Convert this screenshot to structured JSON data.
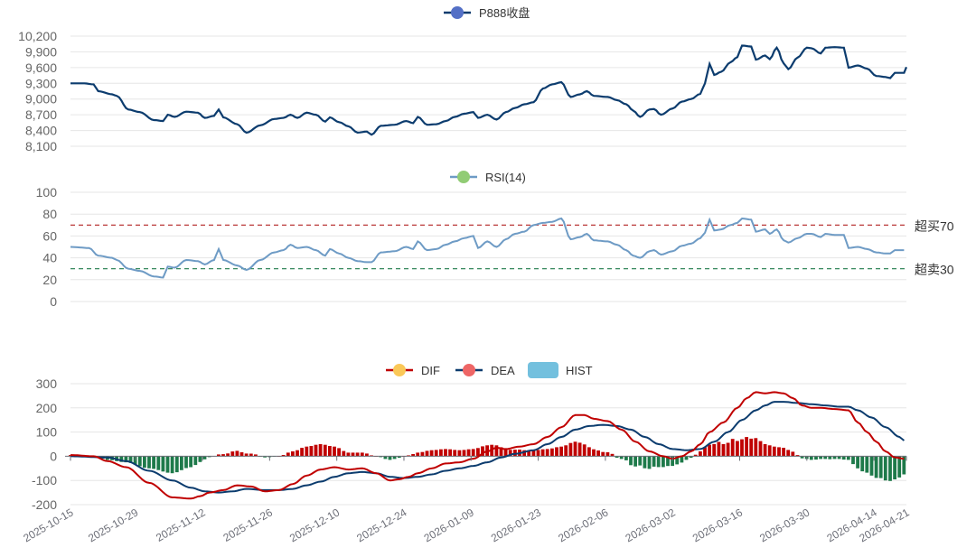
{
  "chart_data": [
    {
      "type": "line",
      "legend": [
        "P888收盘"
      ],
      "series": [
        {
          "name": "P888收盘",
          "color": "#0c3c6e",
          "legend_icon_color": "#5470c6"
        }
      ],
      "y_ticks": [
        8100,
        8400,
        8700,
        9000,
        9300,
        9600,
        9900,
        10200
      ],
      "y_tick_labels": [
        "8,100",
        "8,400",
        "8,700",
        "9,000",
        "9,300",
        "9,600",
        "9,900",
        "10,200"
      ],
      "ylim": [
        8100,
        10200
      ],
      "keypoints": [
        [
          0,
          9300
        ],
        [
          6,
          9300
        ],
        [
          10,
          9280
        ],
        [
          12,
          9150
        ],
        [
          18,
          9090
        ],
        [
          20,
          9060
        ],
        [
          25,
          8800
        ],
        [
          30,
          8750
        ],
        [
          36,
          8600
        ],
        [
          40,
          8580
        ],
        [
          42,
          8700
        ],
        [
          45,
          8660
        ],
        [
          50,
          8760
        ],
        [
          55,
          8740
        ],
        [
          58,
          8640
        ],
        [
          62,
          8680
        ],
        [
          64,
          8800
        ],
        [
          66,
          8650
        ],
        [
          72,
          8520
        ],
        [
          76,
          8360
        ],
        [
          82,
          8500
        ],
        [
          88,
          8620
        ],
        [
          92,
          8640
        ],
        [
          95,
          8700
        ],
        [
          98,
          8640
        ],
        [
          102,
          8740
        ],
        [
          106,
          8700
        ],
        [
          110,
          8570
        ],
        [
          112,
          8650
        ],
        [
          116,
          8560
        ],
        [
          120,
          8480
        ],
        [
          124,
          8360
        ],
        [
          128,
          8380
        ],
        [
          130,
          8320
        ],
        [
          134,
          8490
        ],
        [
          140,
          8510
        ],
        [
          145,
          8580
        ],
        [
          148,
          8540
        ],
        [
          150,
          8660
        ],
        [
          154,
          8510
        ],
        [
          158,
          8520
        ],
        [
          162,
          8580
        ],
        [
          166,
          8660
        ],
        [
          170,
          8720
        ],
        [
          174,
          8750
        ],
        [
          176,
          8640
        ],
        [
          180,
          8700
        ],
        [
          184,
          8610
        ],
        [
          188,
          8750
        ],
        [
          192,
          8830
        ],
        [
          196,
          8900
        ],
        [
          200,
          8940
        ],
        [
          204,
          9200
        ],
        [
          208,
          9280
        ],
        [
          212,
          9320
        ],
        [
          216,
          9040
        ],
        [
          220,
          9090
        ],
        [
          223,
          9150
        ],
        [
          226,
          9060
        ],
        [
          232,
          9040
        ],
        [
          236,
          8980
        ],
        [
          240,
          8900
        ],
        [
          243,
          8780
        ],
        [
          246,
          8660
        ],
        [
          250,
          8800
        ],
        [
          252,
          8810
        ],
        [
          255,
          8700
        ],
        [
          260,
          8820
        ],
        [
          264,
          8950
        ],
        [
          268,
          9000
        ],
        [
          272,
          9100
        ],
        [
          274,
          9300
        ],
        [
          276,
          9670
        ],
        [
          278,
          9460
        ],
        [
          281,
          9520
        ],
        [
          285,
          9700
        ],
        [
          288,
          9800
        ],
        [
          290,
          10020
        ],
        [
          294,
          10000
        ],
        [
          296,
          9750
        ],
        [
          300,
          9830
        ],
        [
          302,
          9760
        ],
        [
          305,
          9980
        ],
        [
          308,
          9680
        ],
        [
          310,
          9570
        ],
        [
          314,
          9790
        ],
        [
          318,
          9980
        ],
        [
          320,
          9970
        ],
        [
          324,
          9870
        ],
        [
          326,
          9980
        ],
        [
          330,
          9990
        ],
        [
          334,
          9980
        ],
        [
          336,
          9600
        ],
        [
          340,
          9640
        ],
        [
          344,
          9580
        ],
        [
          348,
          9440
        ],
        [
          352,
          9420
        ],
        [
          354,
          9400
        ],
        [
          356,
          9500
        ],
        [
          360,
          9500
        ],
        [
          362,
          9720
        ]
      ]
    },
    {
      "type": "line",
      "legend": [
        "RSI(14)"
      ],
      "series": [
        {
          "name": "RSI(14)",
          "color": "#6e9bc5",
          "legend_icon_color": "#91cc75"
        }
      ],
      "y_ticks": [
        0,
        20,
        40,
        60,
        80,
        100
      ],
      "y_tick_labels": [
        "0",
        "20",
        "40",
        "60",
        "80",
        "100"
      ],
      "ylim": [
        0,
        100
      ],
      "overbought": {
        "value": 70,
        "label": "超买70",
        "color": "#b22222"
      },
      "oversold": {
        "value": 30,
        "label": "超卖30",
        "color": "#1e7a4a"
      },
      "keypoints": [
        [
          0,
          50
        ],
        [
          8,
          49
        ],
        [
          12,
          42
        ],
        [
          18,
          40
        ],
        [
          20,
          38
        ],
        [
          25,
          30
        ],
        [
          30,
          28
        ],
        [
          36,
          23
        ],
        [
          40,
          22
        ],
        [
          42,
          32
        ],
        [
          45,
          31
        ],
        [
          50,
          38
        ],
        [
          55,
          37
        ],
        [
          58,
          34
        ],
        [
          62,
          38
        ],
        [
          64,
          48
        ],
        [
          66,
          38
        ],
        [
          72,
          33
        ],
        [
          76,
          29
        ],
        [
          82,
          38
        ],
        [
          88,
          45
        ],
        [
          92,
          47
        ],
        [
          95,
          52
        ],
        [
          98,
          49
        ],
        [
          102,
          50
        ],
        [
          106,
          47
        ],
        [
          110,
          42
        ],
        [
          112,
          48
        ],
        [
          116,
          44
        ],
        [
          120,
          40
        ],
        [
          124,
          37
        ],
        [
          128,
          36
        ],
        [
          130,
          36
        ],
        [
          134,
          45
        ],
        [
          140,
          46
        ],
        [
          145,
          50
        ],
        [
          148,
          48
        ],
        [
          150,
          55
        ],
        [
          154,
          47
        ],
        [
          158,
          48
        ],
        [
          162,
          52
        ],
        [
          166,
          55
        ],
        [
          170,
          58
        ],
        [
          174,
          60
        ],
        [
          176,
          49
        ],
        [
          180,
          55
        ],
        [
          184,
          50
        ],
        [
          188,
          57
        ],
        [
          192,
          62
        ],
        [
          196,
          64
        ],
        [
          200,
          70
        ],
        [
          204,
          72
        ],
        [
          208,
          73
        ],
        [
          212,
          76
        ],
        [
          216,
          57
        ],
        [
          220,
          59
        ],
        [
          223,
          62
        ],
        [
          226,
          56
        ],
        [
          232,
          55
        ],
        [
          236,
          52
        ],
        [
          240,
          47
        ],
        [
          243,
          42
        ],
        [
          246,
          40
        ],
        [
          250,
          46
        ],
        [
          252,
          47
        ],
        [
          255,
          43
        ],
        [
          260,
          46
        ],
        [
          264,
          51
        ],
        [
          268,
          53
        ],
        [
          272,
          58
        ],
        [
          274,
          63
        ],
        [
          276,
          75
        ],
        [
          278,
          65
        ],
        [
          281,
          66
        ],
        [
          285,
          70
        ],
        [
          288,
          72
        ],
        [
          290,
          76
        ],
        [
          294,
          75
        ],
        [
          296,
          64
        ],
        [
          300,
          66
        ],
        [
          302,
          62
        ],
        [
          305,
          66
        ],
        [
          308,
          56
        ],
        [
          310,
          54
        ],
        [
          314,
          58
        ],
        [
          318,
          62
        ],
        [
          320,
          62
        ],
        [
          324,
          59
        ],
        [
          326,
          62
        ],
        [
          330,
          61
        ],
        [
          334,
          61
        ],
        [
          336,
          49
        ],
        [
          340,
          50
        ],
        [
          344,
          48
        ],
        [
          348,
          45
        ],
        [
          352,
          44
        ],
        [
          354,
          44
        ],
        [
          356,
          47
        ],
        [
          360,
          47
        ]
      ]
    },
    {
      "type": "line+bar",
      "legend": [
        "DIF",
        "DEA",
        "HIST"
      ],
      "series": [
        {
          "name": "DIF",
          "color": "#c00000",
          "legend_icon_color": "#fac858"
        },
        {
          "name": "DEA",
          "color": "#0c3c6e",
          "legend_icon_color": "#ee6666"
        },
        {
          "name": "HIST",
          "color": "#73c0de",
          "legend_icon_color": "#73c0de",
          "pos_color": "#c00000",
          "neg_color": "#1e7a4a"
        }
      ],
      "y_ticks": [
        -200,
        -100,
        0,
        100,
        200,
        300
      ],
      "y_tick_labels": [
        "-200",
        "-100",
        "0",
        "100",
        "200",
        "300"
      ],
      "ylim": [
        -200,
        300
      ],
      "x_tick_labels": [
        "2025-10-15",
        "2025-10-29",
        "2025-11-12",
        "2025-11-26",
        "2025-12-10",
        "2025-12-24",
        "2026-01-09",
        "2026-01-23",
        "2026-02-06",
        "2026-03-02",
        "2026-03-16",
        "2026-03-30",
        "2026-04-14",
        "2026-04-21"
      ],
      "x_tick_index": [
        0,
        28,
        57,
        86,
        115,
        144,
        173,
        202,
        231,
        260,
        289,
        318,
        347,
        361
      ],
      "dif_keypoints": [
        [
          0,
          5
        ],
        [
          10,
          0
        ],
        [
          16,
          -20
        ],
        [
          24,
          -45
        ],
        [
          34,
          -110
        ],
        [
          44,
          -170
        ],
        [
          52,
          -175
        ],
        [
          56,
          -165
        ],
        [
          60,
          -150
        ],
        [
          66,
          -140
        ],
        [
          72,
          -120
        ],
        [
          78,
          -125
        ],
        [
          84,
          -145
        ],
        [
          90,
          -140
        ],
        [
          96,
          -115
        ],
        [
          102,
          -80
        ],
        [
          108,
          -55
        ],
        [
          114,
          -45
        ],
        [
          120,
          -55
        ],
        [
          126,
          -50
        ],
        [
          132,
          -70
        ],
        [
          138,
          -100
        ],
        [
          142,
          -95
        ],
        [
          146,
          -85
        ],
        [
          150,
          -70
        ],
        [
          156,
          -50
        ],
        [
          162,
          -30
        ],
        [
          168,
          -25
        ],
        [
          174,
          -10
        ],
        [
          180,
          20
        ],
        [
          184,
          35
        ],
        [
          188,
          30
        ],
        [
          194,
          40
        ],
        [
          200,
          50
        ],
        [
          206,
          80
        ],
        [
          212,
          120
        ],
        [
          218,
          170
        ],
        [
          222,
          170
        ],
        [
          226,
          155
        ],
        [
          232,
          145
        ],
        [
          238,
          110
        ],
        [
          244,
          60
        ],
        [
          250,
          20
        ],
        [
          256,
          0
        ],
        [
          260,
          -10
        ],
        [
          264,
          0
        ],
        [
          268,
          20
        ],
        [
          272,
          50
        ],
        [
          276,
          100
        ],
        [
          282,
          140
        ],
        [
          288,
          200
        ],
        [
          292,
          240
        ],
        [
          296,
          265
        ],
        [
          300,
          260
        ],
        [
          304,
          265
        ],
        [
          308,
          260
        ],
        [
          312,
          240
        ],
        [
          316,
          210
        ],
        [
          320,
          200
        ],
        [
          324,
          200
        ],
        [
          330,
          195
        ],
        [
          336,
          190
        ],
        [
          340,
          140
        ],
        [
          344,
          100
        ],
        [
          348,
          60
        ],
        [
          352,
          20
        ],
        [
          356,
          -5
        ],
        [
          360,
          -10
        ]
      ],
      "dea_keypoints": [
        [
          0,
          0
        ],
        [
          16,
          -5
        ],
        [
          24,
          -20
        ],
        [
          34,
          -60
        ],
        [
          44,
          -100
        ],
        [
          52,
          -130
        ],
        [
          58,
          -145
        ],
        [
          64,
          -150
        ],
        [
          70,
          -145
        ],
        [
          76,
          -135
        ],
        [
          84,
          -140
        ],
        [
          90,
          -140
        ],
        [
          96,
          -135
        ],
        [
          102,
          -120
        ],
        [
          108,
          -105
        ],
        [
          114,
          -85
        ],
        [
          120,
          -70
        ],
        [
          126,
          -65
        ],
        [
          132,
          -70
        ],
        [
          138,
          -85
        ],
        [
          144,
          -90
        ],
        [
          150,
          -85
        ],
        [
          156,
          -75
        ],
        [
          162,
          -60
        ],
        [
          168,
          -50
        ],
        [
          174,
          -40
        ],
        [
          180,
          -25
        ],
        [
          186,
          -5
        ],
        [
          192,
          10
        ],
        [
          200,
          25
        ],
        [
          206,
          50
        ],
        [
          212,
          80
        ],
        [
          218,
          110
        ],
        [
          224,
          125
        ],
        [
          230,
          130
        ],
        [
          236,
          125
        ],
        [
          242,
          110
        ],
        [
          248,
          80
        ],
        [
          254,
          50
        ],
        [
          260,
          30
        ],
        [
          266,
          25
        ],
        [
          272,
          30
        ],
        [
          278,
          60
        ],
        [
          284,
          100
        ],
        [
          290,
          150
        ],
        [
          296,
          190
        ],
        [
          300,
          210
        ],
        [
          304,
          225
        ],
        [
          308,
          225
        ],
        [
          314,
          220
        ],
        [
          320,
          215
        ],
        [
          326,
          210
        ],
        [
          332,
          205
        ],
        [
          336,
          205
        ],
        [
          340,
          190
        ],
        [
          346,
          160
        ],
        [
          352,
          120
        ],
        [
          358,
          80
        ],
        [
          360,
          65
        ]
      ]
    }
  ]
}
